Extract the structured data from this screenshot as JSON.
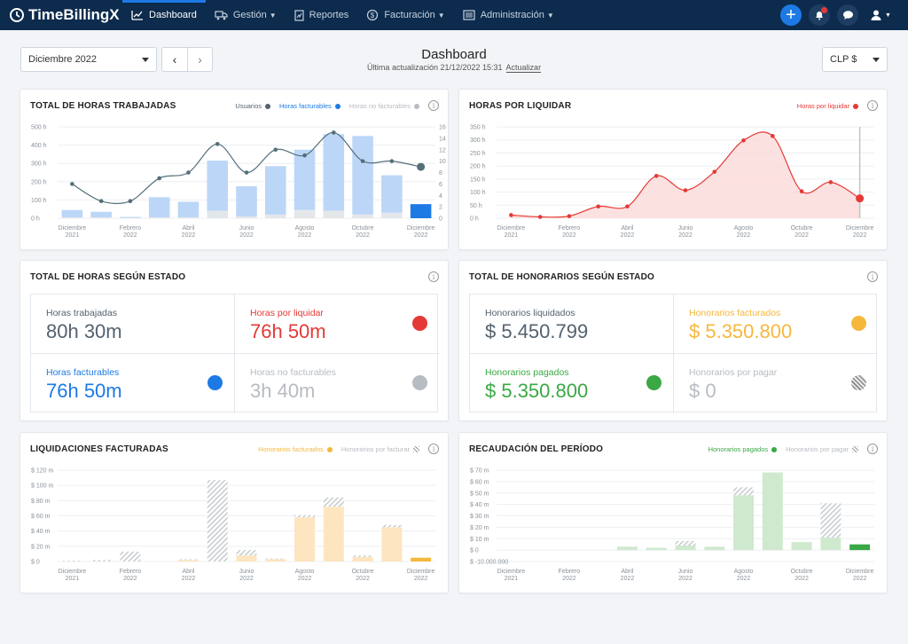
{
  "nav": {
    "brand": "TimeBillingX",
    "items": [
      {
        "label": "Dashboard",
        "icon": "chart-line-icon",
        "caret": false,
        "active": true
      },
      {
        "label": "Gestión",
        "icon": "truck-icon",
        "caret": true,
        "active": false
      },
      {
        "label": "Reportes",
        "icon": "report-icon",
        "caret": false,
        "active": false
      },
      {
        "label": "Facturación",
        "icon": "money-icon",
        "caret": true,
        "active": false
      },
      {
        "label": "Administración",
        "icon": "admin-list-icon",
        "caret": true,
        "active": false
      }
    ],
    "plus_label": "+"
  },
  "header": {
    "period": "Diciembre 2022",
    "title": "Dashboard",
    "updated_text": "Última actualización 21/12/2022 15:31",
    "refresh_label": "Actualizar",
    "currency": "CLP $"
  },
  "colors": {
    "blue": "#1d7ae5",
    "light_blue": "#bcd6f7",
    "red": "#e53935",
    "grey": "#b7bcc2",
    "orange": "#f5b83d",
    "light_orange": "#fde5c0",
    "green": "#3aa845",
    "light_green": "#cfe9cf",
    "slate": "#546e7a"
  },
  "cards": {
    "hours": {
      "title": "TOTAL DE HORAS TRABAJADAS",
      "legend": [
        "Usuarios",
        "Horas facturables",
        "Horas no facturables"
      ],
      "chart_data": {
        "type": "bar",
        "x_labels": [
          [
            "Diciembre",
            "2021"
          ],
          [
            "Febrero",
            "2022"
          ],
          [
            "Abril",
            "2022"
          ],
          [
            "Junio",
            "2022"
          ],
          [
            "Agosto",
            "2022"
          ],
          [
            "Octubre",
            "2022"
          ],
          [
            "Diciembre",
            "2022"
          ]
        ],
        "y_ticks": [
          "0 h",
          "100 h",
          "200 h",
          "300 h",
          "400 h",
          "500 h"
        ],
        "y2_ticks": [
          "0",
          "2",
          "4",
          "6",
          "8",
          "10",
          "12",
          "14",
          "16"
        ],
        "ylim": [
          0,
          500
        ],
        "y2lim": [
          0,
          16
        ],
        "series": [
          {
            "name": "Horas facturables",
            "values": [
              40,
              30,
              5,
              110,
              85,
              275,
              165,
              265,
              330,
              420,
              430,
              205,
              77
            ]
          },
          {
            "name": "Horas no facturables",
            "values": [
              5,
              5,
              2,
              5,
              5,
              40,
              10,
              20,
              45,
              40,
              20,
              30,
              0
            ]
          },
          {
            "name": "Usuarios",
            "values": [
              6,
              3,
              3,
              7,
              8,
              13,
              8,
              12,
              11,
              15,
              10,
              10,
              9
            ]
          }
        ]
      }
    },
    "pending": {
      "title": "HORAS POR LIQUIDAR",
      "legend": [
        "Horas por liquidar"
      ],
      "chart_data": {
        "type": "area",
        "x_labels": [
          [
            "Diciembre",
            "2021"
          ],
          [
            "Febrero",
            "2022"
          ],
          [
            "Abril",
            "2022"
          ],
          [
            "Junio",
            "2022"
          ],
          [
            "Agosto",
            "2022"
          ],
          [
            "Octubre",
            "2022"
          ],
          [
            "Diciembre",
            "2022"
          ]
        ],
        "y_ticks": [
          "0 h",
          "50 h",
          "100 h",
          "150 h",
          "200 h",
          "250 h",
          "300 h",
          "350 h"
        ],
        "ylim": [
          0,
          350
        ],
        "series": [
          {
            "name": "Horas por liquidar",
            "values": [
              12,
              5,
              8,
              45,
              45,
              162,
              107,
              178,
              298,
              315,
              103,
              138,
              76
            ]
          }
        ]
      }
    },
    "hours_status": {
      "title": "TOTAL DE HORAS SEGÚN ESTADO",
      "items": [
        {
          "label": "Horas trabajadas",
          "value": "80h 30m",
          "color": "#54626f",
          "dot": ""
        },
        {
          "label": "Horas por liquidar",
          "value": "76h 50m",
          "color": "#e53935",
          "dot": "#e53935"
        },
        {
          "label": "Horas facturables",
          "value": "76h 50m",
          "color": "#1d7ae5",
          "dot": "#1d7ae5"
        },
        {
          "label": "Horas no facturables",
          "value": "3h 40m",
          "color": "#b7bcc2",
          "dot": "#b7bcc2"
        }
      ]
    },
    "fees_status": {
      "title": "TOTAL DE HONORARIOS SEGÚN ESTADO",
      "items": [
        {
          "label": "Honorarios liquidados",
          "value": "$ 5.450.799",
          "color": "#54626f",
          "dot": ""
        },
        {
          "label": "Honorarios facturados",
          "value": "$ 5.350.800",
          "color": "#f5b83d",
          "dot": "#f5b83d"
        },
        {
          "label": "Honorarios pagados",
          "value": "$ 5.350.800",
          "color": "#3aa845",
          "dot": "#3aa845"
        },
        {
          "label": "Honorarios por pagar",
          "value": "$ 0",
          "color": "#b7bcc2",
          "dot": "hatch"
        }
      ]
    },
    "invoiced": {
      "title": "LIQUIDACIONES FACTURADAS",
      "legend": [
        "Honorarios facturados",
        "Honorarios por facturar"
      ],
      "chart_data": {
        "type": "bar",
        "x_labels": [
          [
            "Diciembre",
            "2021"
          ],
          [
            "Febrero",
            "2022"
          ],
          [
            "Abril",
            "2022"
          ],
          [
            "Junio",
            "2022"
          ],
          [
            "Agosto",
            "2022"
          ],
          [
            "Octubre",
            "2022"
          ],
          [
            "Diciembre",
            "2022"
          ]
        ],
        "y_ticks": [
          "$ 0",
          "$ 20 m",
          "$ 40 m",
          "$ 60 m",
          "$ 80 m",
          "$ 100 m",
          "$ 120 m"
        ],
        "ylim": [
          0,
          120
        ],
        "series": [
          {
            "name": "Honorarios facturados",
            "values": [
              0,
              0,
              0,
              0,
              2,
              0,
              8,
              3,
              58,
              72,
              6,
              45,
              5
            ]
          },
          {
            "name": "Honorarios por facturar",
            "values": [
              1,
              2,
              13,
              0,
              1,
              107,
              7,
              1,
              3,
              12,
              2,
              3,
              0
            ]
          }
        ]
      }
    },
    "collected": {
      "title": "RECAUDACIÓN DEL PERÍODO",
      "legend": [
        "Honorarios pagados",
        "Honorarios por pagar"
      ],
      "chart_data": {
        "type": "bar",
        "x_labels": [
          [
            "Diciembre",
            "2021"
          ],
          [
            "Febrero",
            "2022"
          ],
          [
            "Abril",
            "2022"
          ],
          [
            "Junio",
            "2022"
          ],
          [
            "Agosto",
            "2022"
          ],
          [
            "Octubre",
            "2022"
          ],
          [
            "Diciembre",
            "2022"
          ]
        ],
        "y_ticks": [
          "$ -10.000.000",
          "$ 0",
          "$ 10 m",
          "$ 20 m",
          "$ 30 m",
          "$ 40 m",
          "$ 50 m",
          "$ 60 m",
          "$ 70 m"
        ],
        "ylim": [
          -10,
          70
        ],
        "series": [
          {
            "name": "Honorarios pagados",
            "values": [
              0,
              0,
              0,
              0,
              3,
              2,
              4,
              3,
              48,
              68,
              7,
              11,
              5
            ]
          },
          {
            "name": "Honorarios por pagar",
            "values": [
              0,
              0,
              0,
              0,
              0,
              0,
              4,
              0,
              7,
              0,
              0,
              30,
              0
            ]
          }
        ]
      }
    }
  }
}
